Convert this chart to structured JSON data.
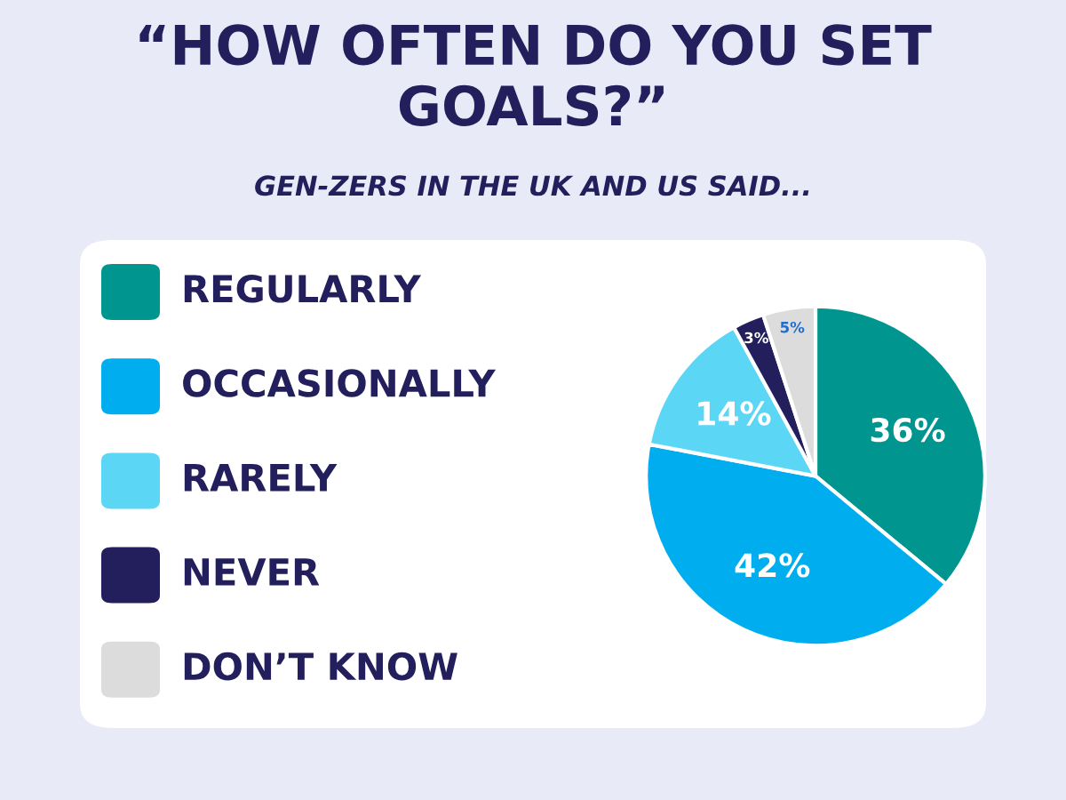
{
  "chart_data": {
    "type": "pie",
    "title": "“HOW OFTEN DO YOU SET GOALS?”",
    "subtitle": "GEN-ZERS IN THE UK AND US SAID...",
    "categories": [
      "REGULARLY",
      "OCCASIONALLY",
      "RARELY",
      "NEVER",
      "DON’T KNOW"
    ],
    "values": [
      36,
      42,
      14,
      3,
      5
    ],
    "colors": [
      "#00968f",
      "#00aeef",
      "#5cd6f5",
      "#231f5c",
      "#dcdcdc"
    ],
    "value_labels": [
      "36%",
      "42%",
      "14%",
      "3%",
      "5%"
    ],
    "legend": "left"
  }
}
